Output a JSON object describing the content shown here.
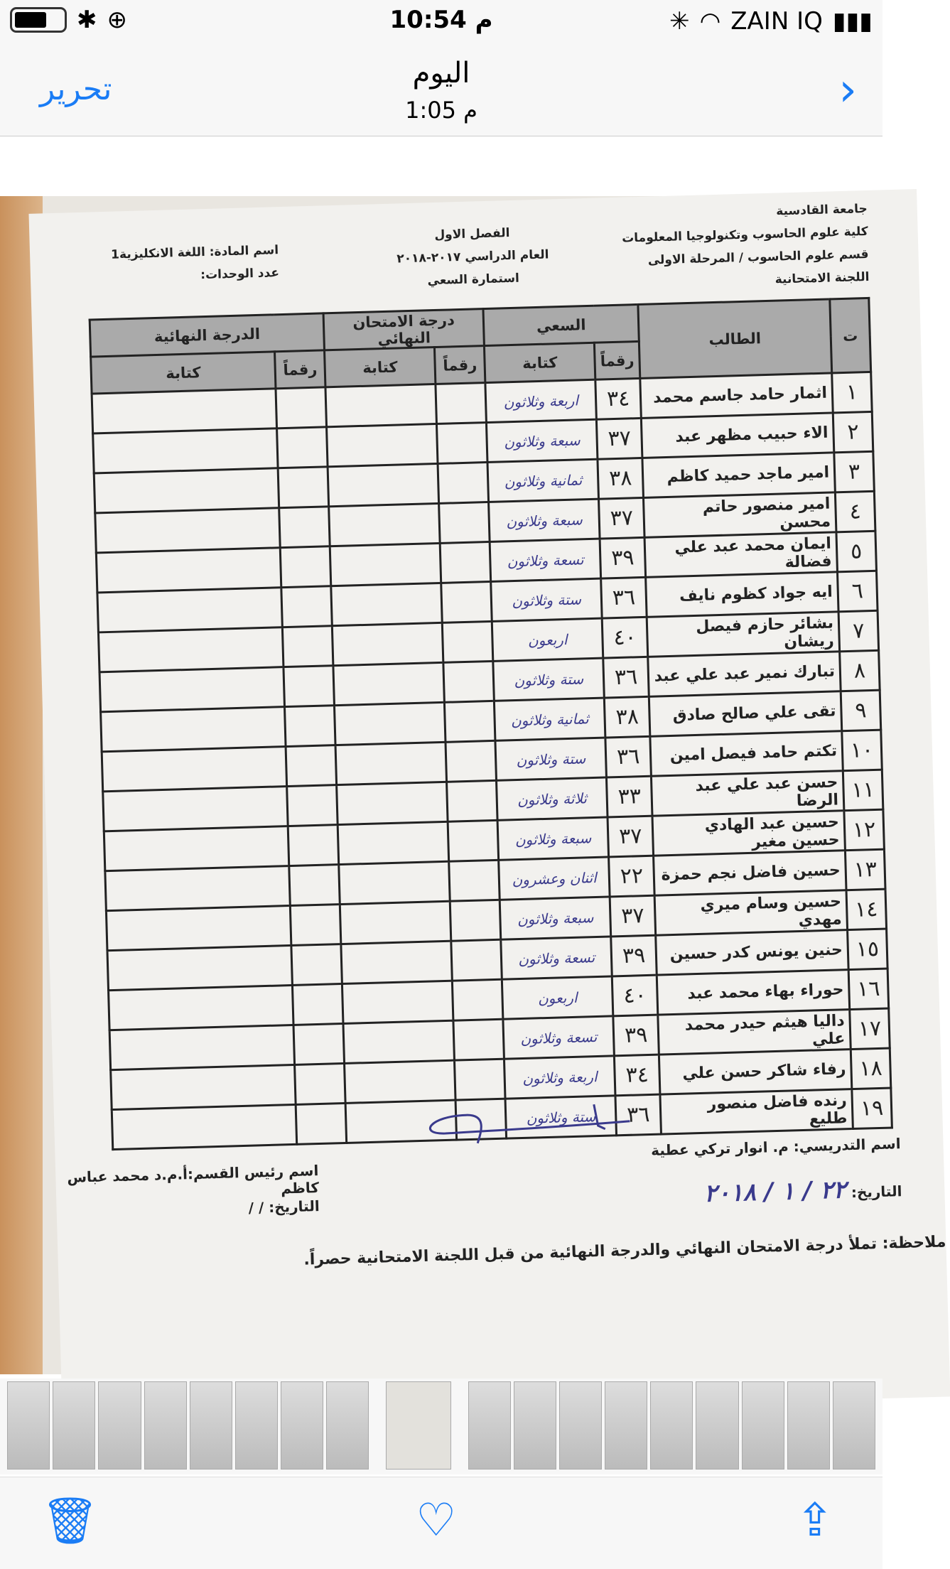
{
  "status": {
    "time": "10:54 م",
    "carrier": "ZAIN IQ"
  },
  "nav": {
    "edit": "تحرير",
    "title": "اليوم",
    "subtitle": "1:05 م"
  },
  "document": {
    "university": "جامعة القادسية",
    "college": "كلية علوم الحاسوب وتكنولوجيا المعلومات",
    "dept": "قسم علوم الحاسوب / المرحلة الاولى",
    "committee": "اللجنة الامتحانية",
    "semester": "الفصل الاول",
    "year": "العام الدراسي ٢٠١٧-٢٠١٨",
    "form": "استمارة السعي",
    "subject": "اسم المادة: اللغة الانكليزية1",
    "units": "عدد الوحدات:",
    "headers": {
      "no": "ت",
      "student": "الطالب",
      "effort": "السعي",
      "final_exam": "درجة الامتحان النهائي",
      "final_grade": "الدرجة النهائية",
      "digits": "رقماً",
      "words": "كتابة"
    },
    "rows": [
      {
        "no": "١",
        "name": "اثمار حامد جاسم محمد",
        "num": "٣٤",
        "words": "اربعة وثلاثون"
      },
      {
        "no": "٢",
        "name": "الاء حبيب مظهر عبد",
        "num": "٣٧",
        "words": "سبعة وثلاثون"
      },
      {
        "no": "٣",
        "name": "امير ماجد حميد كاظم",
        "num": "٣٨",
        "words": "ثمانية وثلاثون"
      },
      {
        "no": "٤",
        "name": "امير منصور حاتم محسن",
        "num": "٣٧",
        "words": "سبعة وثلاثون"
      },
      {
        "no": "٥",
        "name": "ايمان محمد عبد علي فضالة",
        "num": "٣٩",
        "words": "تسعة وثلاثون"
      },
      {
        "no": "٦",
        "name": "ايه جواد كظوم نايف",
        "num": "٣٦",
        "words": "ستة وثلاثون"
      },
      {
        "no": "٧",
        "name": "بشائر حازم فيصل ريشان",
        "num": "٤٠",
        "words": "اربعون"
      },
      {
        "no": "٨",
        "name": "تبارك نمير عبد علي عبد",
        "num": "٣٦",
        "words": "ستة وثلاثون"
      },
      {
        "no": "٩",
        "name": "تقى علي صالح صادق",
        "num": "٣٨",
        "words": "ثمانية وثلاثون"
      },
      {
        "no": "١٠",
        "name": "تكتم حامد فيصل امين",
        "num": "٣٦",
        "words": "ستة وثلاثون"
      },
      {
        "no": "١١",
        "name": "حسن عبد علي عبد الرضا",
        "num": "٣٣",
        "words": "ثلاثة وثلاثون"
      },
      {
        "no": "١٢",
        "name": "حسين عبد الهادي حسين مغير",
        "num": "٣٧",
        "words": "سبعة وثلاثون"
      },
      {
        "no": "١٣",
        "name": "حسين فاضل نجم حمزة",
        "num": "٢٢",
        "words": "اثنان وعشرون"
      },
      {
        "no": "١٤",
        "name": "حسين وسام ميري مهدي",
        "num": "٣٧",
        "words": "سبعة وثلاثون"
      },
      {
        "no": "١٥",
        "name": "حنين يونس كدر حسين",
        "num": "٣٩",
        "words": "تسعة وثلاثون"
      },
      {
        "no": "١٦",
        "name": "حوراء بهاء محمد عبد",
        "num": "٤٠",
        "words": "اربعون"
      },
      {
        "no": "١٧",
        "name": "داليا هيثم حيدر محمد علي",
        "num": "٣٩",
        "words": "تسعة وثلاثون"
      },
      {
        "no": "١٨",
        "name": "رفاء شاكر حسن علي",
        "num": "٣٤",
        "words": "اربعة وثلاثون"
      },
      {
        "no": "١٩",
        "name": "رنده فاضل منصور طليع",
        "num": "٣٦",
        "words": "ستة وثلاثون"
      }
    ],
    "teacher": "اسم التدريسي: م. انوار تركي عطية",
    "teacher_date_label": "التاريخ:",
    "teacher_date": "٢٢ / ١ / ٢٠١٨",
    "head": "اسم رئيس القسم:أ.م.د محمد عباس كاظم",
    "head_date": "التاريخ:    /    /",
    "note": "ملاحظة: تملأ درجة الامتحان النهائي والدرجة النهائية من قبل اللجنة الامتحانية حصراً."
  },
  "toolbar": {
    "trash": "trash-icon",
    "favorite": "heart-icon",
    "share": "share-icon"
  }
}
